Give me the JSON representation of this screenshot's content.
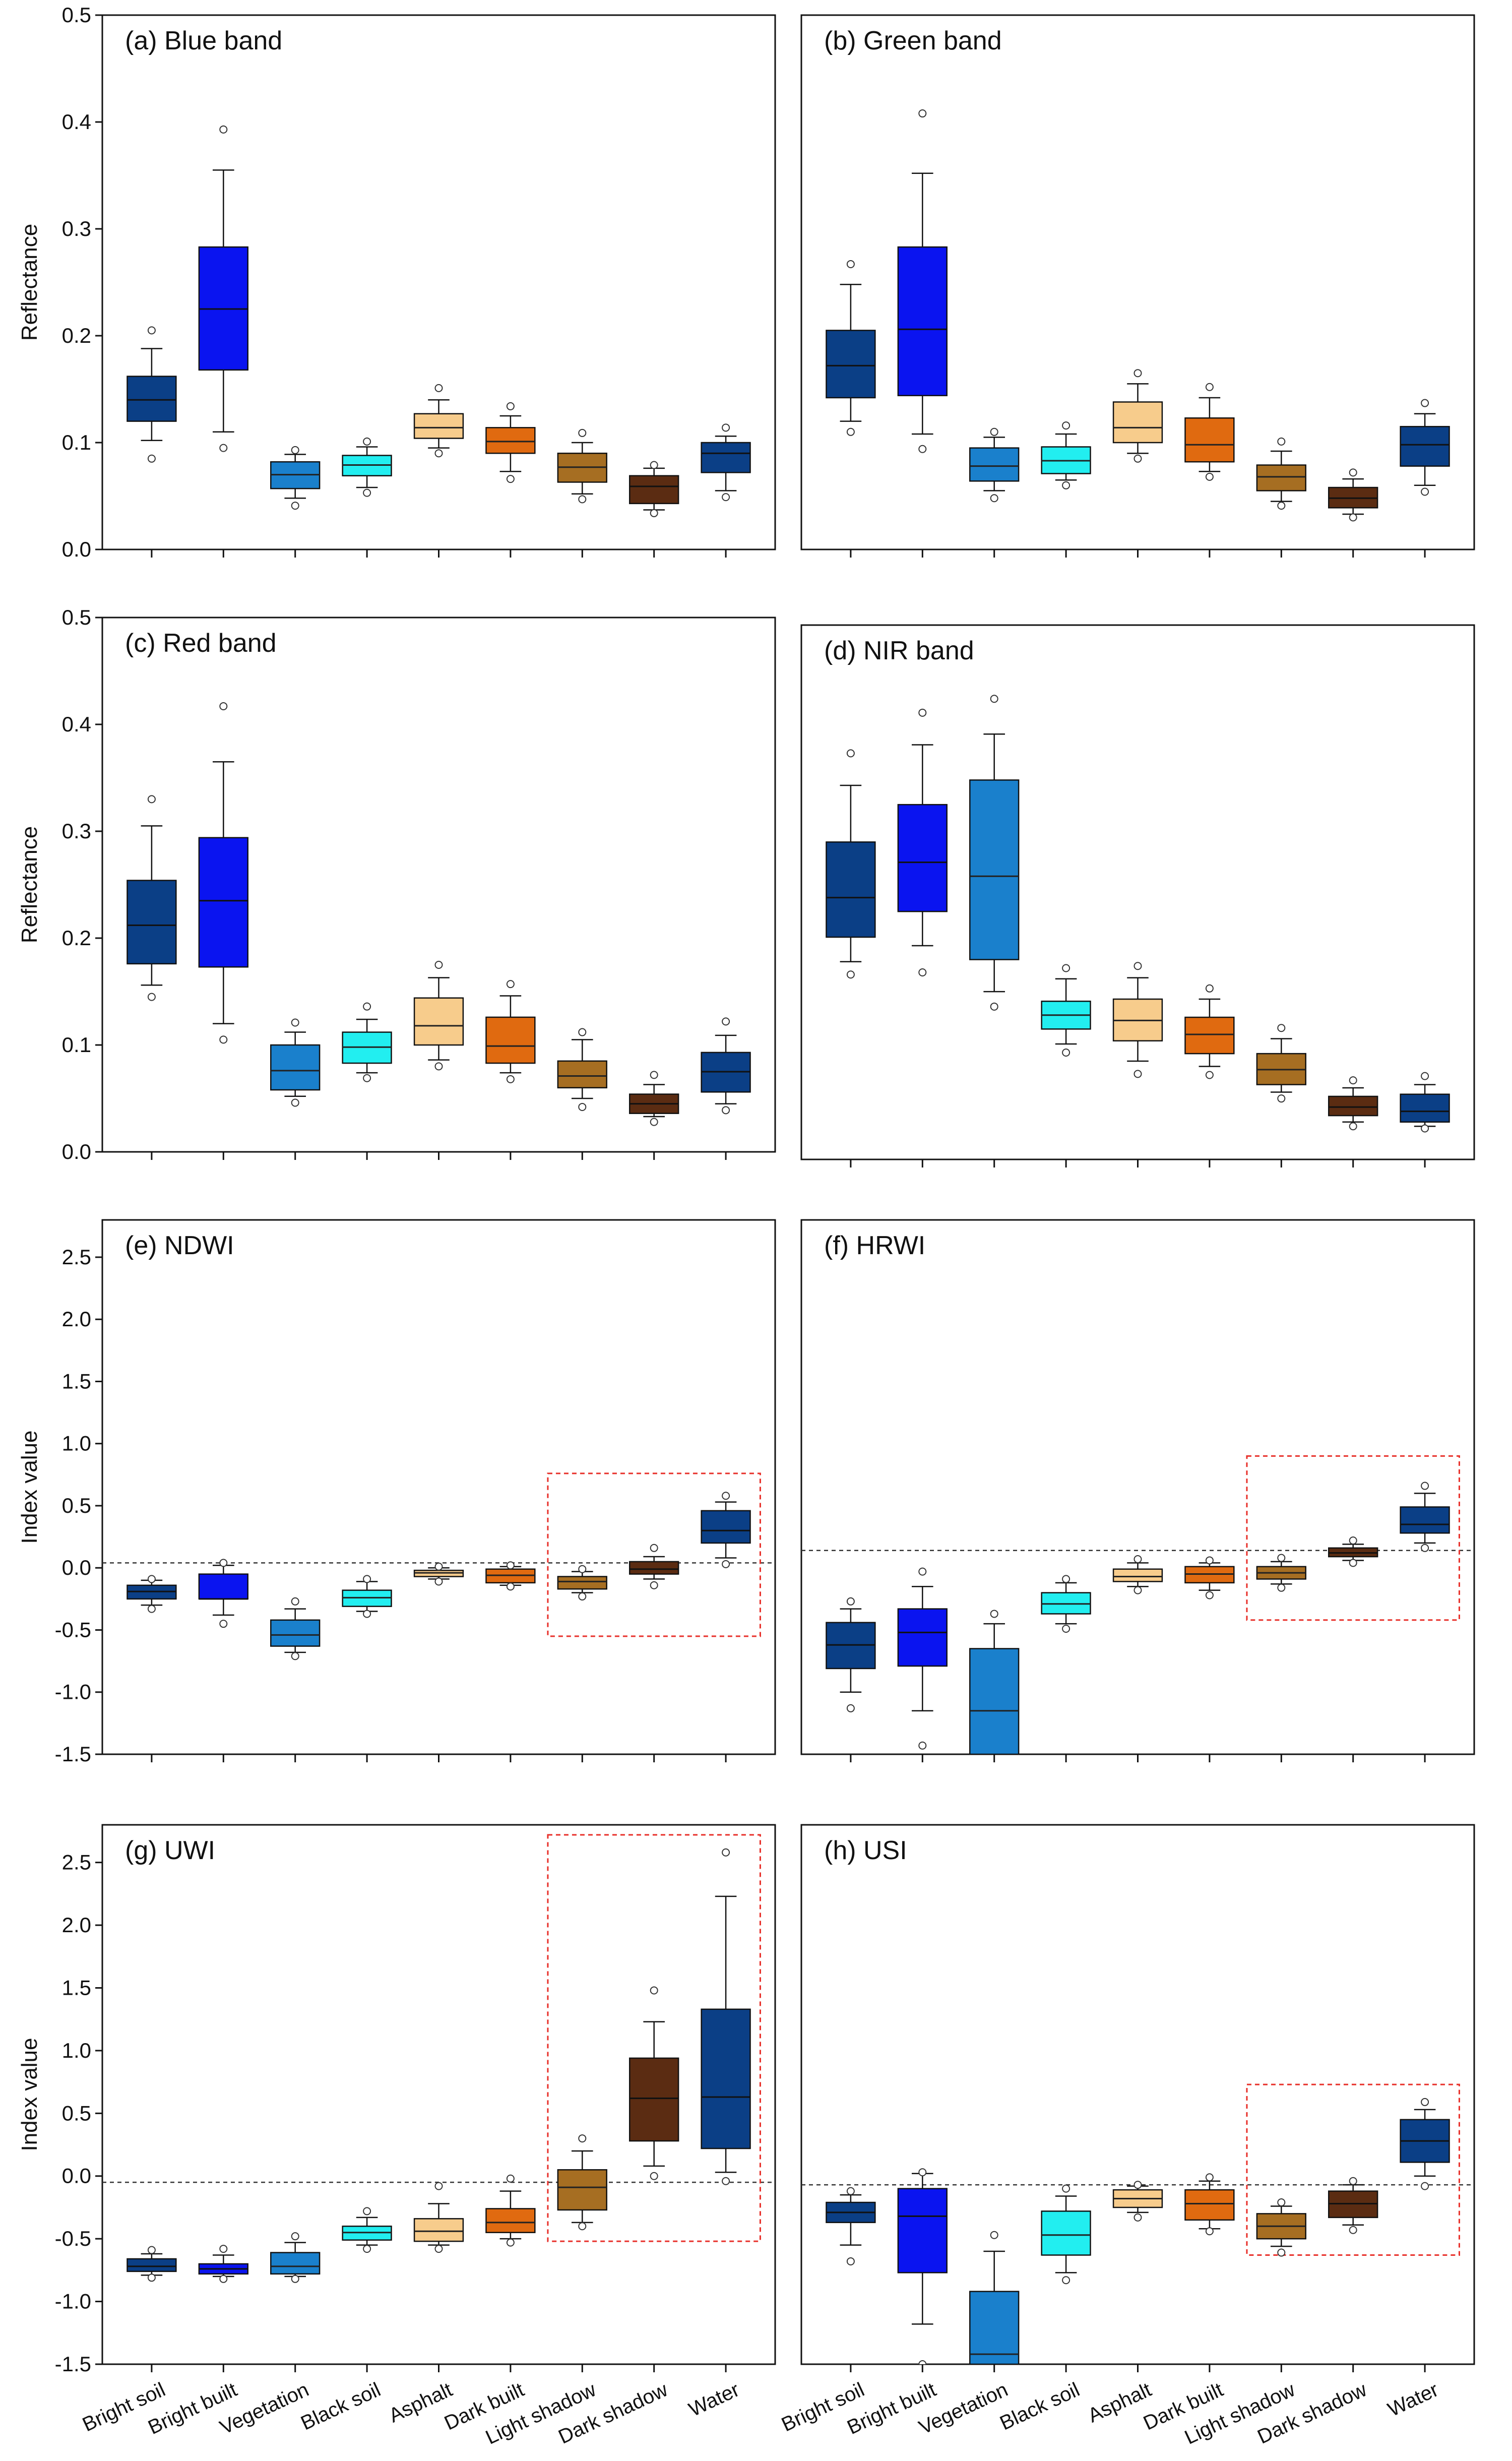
{
  "figure": {
    "categories": [
      "Bright soil",
      "Bright built",
      "Vegetation",
      "Black soil",
      "Asphalt",
      "Dark built",
      "Light shadow",
      "Dark shadow",
      "Water"
    ],
    "category_colors": [
      "#0b3f86",
      "#0a14f0",
      "#1a80cc",
      "#22eef0",
      "#f7cc8c",
      "#e06a10",
      "#a66e22",
      "#5b2c12",
      "#0b3f86"
    ]
  },
  "chart_data": [
    {
      "type": "box",
      "id": "a",
      "title": "(a) Blue band",
      "ylabel": "Reflectance",
      "ylim": [
        0,
        0.5
      ],
      "yticks": [
        0.0,
        0.1,
        0.2,
        0.3,
        0.4,
        0.5
      ],
      "tick_format": "1",
      "boxes": [
        {
          "q1": 0.12,
          "median": 0.14,
          "q3": 0.162,
          "wlo": 0.102,
          "whi": 0.188,
          "outliers": [
            0.085,
            0.205
          ]
        },
        {
          "q1": 0.168,
          "median": 0.225,
          "q3": 0.283,
          "wlo": 0.11,
          "whi": 0.355,
          "outliers": [
            0.095,
            0.393
          ]
        },
        {
          "q1": 0.057,
          "median": 0.07,
          "q3": 0.082,
          "wlo": 0.048,
          "whi": 0.089,
          "outliers": [
            0.041,
            0.093
          ]
        },
        {
          "q1": 0.069,
          "median": 0.079,
          "q3": 0.088,
          "wlo": 0.058,
          "whi": 0.096,
          "outliers": [
            0.053,
            0.101
          ]
        },
        {
          "q1": 0.104,
          "median": 0.114,
          "q3": 0.127,
          "wlo": 0.095,
          "whi": 0.14,
          "outliers": [
            0.09,
            0.151
          ]
        },
        {
          "q1": 0.09,
          "median": 0.101,
          "q3": 0.114,
          "wlo": 0.073,
          "whi": 0.125,
          "outliers": [
            0.066,
            0.134
          ]
        },
        {
          "q1": 0.063,
          "median": 0.077,
          "q3": 0.09,
          "wlo": 0.052,
          "whi": 0.1,
          "outliers": [
            0.047,
            0.109
          ]
        },
        {
          "q1": 0.043,
          "median": 0.059,
          "q3": 0.069,
          "wlo": 0.037,
          "whi": 0.076,
          "outliers": [
            0.034,
            0.079
          ]
        },
        {
          "q1": 0.072,
          "median": 0.09,
          "q3": 0.1,
          "wlo": 0.055,
          "whi": 0.106,
          "outliers": [
            0.049,
            0.114
          ]
        }
      ]
    },
    {
      "type": "box",
      "id": "b",
      "title": "(b) Green band",
      "ylim": [
        0,
        0.5
      ],
      "yticks": [],
      "tick_format": "1",
      "boxes": [
        {
          "q1": 0.142,
          "median": 0.172,
          "q3": 0.205,
          "wlo": 0.12,
          "whi": 0.248,
          "outliers": [
            0.11,
            0.267
          ]
        },
        {
          "q1": 0.144,
          "median": 0.206,
          "q3": 0.283,
          "wlo": 0.108,
          "whi": 0.352,
          "outliers": [
            0.094,
            0.408
          ]
        },
        {
          "q1": 0.064,
          "median": 0.078,
          "q3": 0.095,
          "wlo": 0.055,
          "whi": 0.105,
          "outliers": [
            0.048,
            0.11
          ]
        },
        {
          "q1": 0.071,
          "median": 0.083,
          "q3": 0.096,
          "wlo": 0.065,
          "whi": 0.108,
          "outliers": [
            0.06,
            0.116
          ]
        },
        {
          "q1": 0.1,
          "median": 0.114,
          "q3": 0.138,
          "wlo": 0.09,
          "whi": 0.155,
          "outliers": [
            0.085,
            0.165
          ]
        },
        {
          "q1": 0.082,
          "median": 0.098,
          "q3": 0.123,
          "wlo": 0.073,
          "whi": 0.142,
          "outliers": [
            0.068,
            0.152
          ]
        },
        {
          "q1": 0.055,
          "median": 0.068,
          "q3": 0.079,
          "wlo": 0.045,
          "whi": 0.092,
          "outliers": [
            0.041,
            0.101
          ]
        },
        {
          "q1": 0.039,
          "median": 0.048,
          "q3": 0.058,
          "wlo": 0.033,
          "whi": 0.066,
          "outliers": [
            0.03,
            0.072
          ]
        },
        {
          "q1": 0.078,
          "median": 0.098,
          "q3": 0.115,
          "wlo": 0.06,
          "whi": 0.127,
          "outliers": [
            0.054,
            0.137
          ]
        }
      ]
    },
    {
      "type": "box",
      "id": "c",
      "title": "(c) Red band",
      "ylabel": "Reflectance",
      "ylim": [
        0,
        0.5
      ],
      "yticks": [
        0.0,
        0.1,
        0.2,
        0.3,
        0.4,
        0.5
      ],
      "tick_format": "1",
      "boxes": [
        {
          "q1": 0.176,
          "median": 0.212,
          "q3": 0.254,
          "wlo": 0.156,
          "whi": 0.305,
          "outliers": [
            0.145,
            0.33
          ]
        },
        {
          "q1": 0.173,
          "median": 0.235,
          "q3": 0.294,
          "wlo": 0.12,
          "whi": 0.365,
          "outliers": [
            0.105,
            0.417
          ]
        },
        {
          "q1": 0.058,
          "median": 0.076,
          "q3": 0.1,
          "wlo": 0.052,
          "whi": 0.112,
          "outliers": [
            0.046,
            0.121
          ]
        },
        {
          "q1": 0.083,
          "median": 0.098,
          "q3": 0.112,
          "wlo": 0.074,
          "whi": 0.124,
          "outliers": [
            0.069,
            0.136
          ]
        },
        {
          "q1": 0.1,
          "median": 0.118,
          "q3": 0.144,
          "wlo": 0.086,
          "whi": 0.163,
          "outliers": [
            0.08,
            0.175
          ]
        },
        {
          "q1": 0.083,
          "median": 0.099,
          "q3": 0.126,
          "wlo": 0.074,
          "whi": 0.146,
          "outliers": [
            0.068,
            0.157
          ]
        },
        {
          "q1": 0.06,
          "median": 0.071,
          "q3": 0.085,
          "wlo": 0.05,
          "whi": 0.105,
          "outliers": [
            0.042,
            0.112
          ]
        },
        {
          "q1": 0.036,
          "median": 0.045,
          "q3": 0.054,
          "wlo": 0.033,
          "whi": 0.063,
          "outliers": [
            0.028,
            0.072
          ]
        },
        {
          "q1": 0.056,
          "median": 0.075,
          "q3": 0.093,
          "wlo": 0.045,
          "whi": 0.109,
          "outliers": [
            0.039,
            0.122
          ]
        }
      ]
    },
    {
      "type": "box",
      "id": "d",
      "title": "(d) NIR band",
      "ylim": [
        0,
        0.5
      ],
      "yticks": [],
      "tick_format": "1",
      "boxes": [
        {
          "q1": 0.208,
          "median": 0.245,
          "q3": 0.297,
          "wlo": 0.185,
          "whi": 0.35,
          "outliers": [
            0.173,
            0.38
          ]
        },
        {
          "q1": 0.232,
          "median": 0.278,
          "q3": 0.332,
          "wlo": 0.2,
          "whi": 0.388,
          "outliers": [
            0.175,
            0.418
          ]
        },
        {
          "q1": 0.187,
          "median": 0.265,
          "q3": 0.355,
          "wlo": 0.157,
          "whi": 0.398,
          "outliers": [
            0.143,
            0.431
          ]
        },
        {
          "q1": 0.122,
          "median": 0.135,
          "q3": 0.148,
          "wlo": 0.108,
          "whi": 0.169,
          "outliers": [
            0.1,
            0.179
          ]
        },
        {
          "q1": 0.111,
          "median": 0.13,
          "q3": 0.15,
          "wlo": 0.092,
          "whi": 0.17,
          "outliers": [
            0.08,
            0.181
          ]
        },
        {
          "q1": 0.099,
          "median": 0.117,
          "q3": 0.133,
          "wlo": 0.087,
          "whi": 0.15,
          "outliers": [
            0.079,
            0.16
          ]
        },
        {
          "q1": 0.07,
          "median": 0.084,
          "q3": 0.099,
          "wlo": 0.063,
          "whi": 0.113,
          "outliers": [
            0.057,
            0.123
          ]
        },
        {
          "q1": 0.041,
          "median": 0.049,
          "q3": 0.059,
          "wlo": 0.035,
          "whi": 0.067,
          "outliers": [
            0.031,
            0.074
          ]
        },
        {
          "q1": 0.035,
          "median": 0.045,
          "q3": 0.061,
          "wlo": 0.031,
          "whi": 0.07,
          "outliers": [
            0.029,
            0.078
          ]
        }
      ]
    },
    {
      "type": "box",
      "id": "e",
      "title": "(e) NDWI",
      "ylabel": "Index value",
      "ylim": [
        -1.5,
        2.8
      ],
      "yticks": [
        -1.5,
        -1.0,
        -0.5,
        0.0,
        0.5,
        1.0,
        1.5,
        2.0,
        2.5
      ],
      "tick_format": "1",
      "threshold": 0.04,
      "highlight": {
        "from": 6,
        "to": 8,
        "ylo": -0.55,
        "yhi": 0.76
      },
      "boxes": [
        {
          "q1": -0.25,
          "median": -0.19,
          "q3": -0.14,
          "wlo": -0.3,
          "whi": -0.1,
          "outliers": [
            -0.33,
            -0.09
          ]
        },
        {
          "q1": -0.25,
          "median": -0.25,
          "q3": -0.05,
          "wlo": -0.38,
          "whi": 0.02,
          "outliers": [
            -0.45,
            0.04
          ]
        },
        {
          "q1": -0.63,
          "median": -0.54,
          "q3": -0.42,
          "wlo": -0.68,
          "whi": -0.33,
          "outliers": [
            -0.71,
            -0.27
          ]
        },
        {
          "q1": -0.31,
          "median": -0.24,
          "q3": -0.18,
          "wlo": -0.35,
          "whi": -0.11,
          "outliers": [
            -0.37,
            -0.09
          ]
        },
        {
          "q1": -0.07,
          "median": -0.04,
          "q3": -0.02,
          "wlo": -0.09,
          "whi": 0.0,
          "outliers": [
            -0.11,
            0.01
          ]
        },
        {
          "q1": -0.12,
          "median": -0.06,
          "q3": -0.01,
          "wlo": -0.14,
          "whi": 0.01,
          "outliers": [
            -0.15,
            0.02
          ]
        },
        {
          "q1": -0.17,
          "median": -0.11,
          "q3": -0.07,
          "wlo": -0.2,
          "whi": -0.03,
          "outliers": [
            -0.23,
            -0.01
          ]
        },
        {
          "q1": -0.05,
          "median": -0.01,
          "q3": 0.05,
          "wlo": -0.09,
          "whi": 0.09,
          "outliers": [
            -0.14,
            0.16
          ]
        },
        {
          "q1": 0.2,
          "median": 0.3,
          "q3": 0.46,
          "wlo": 0.08,
          "whi": 0.53,
          "outliers": [
            0.03,
            0.58
          ]
        }
      ]
    },
    {
      "type": "box",
      "id": "f",
      "title": "(f) HRWI",
      "ylim": [
        -1.5,
        2.8
      ],
      "yticks": [],
      "tick_format": "1",
      "threshold": 0.14,
      "highlight": {
        "from": 6,
        "to": 8,
        "ylo": -0.42,
        "yhi": 0.9
      },
      "boxes": [
        {
          "q1": -0.81,
          "median": -0.62,
          "q3": -0.44,
          "wlo": -1.0,
          "whi": -0.33,
          "outliers": [
            -1.13,
            -0.27
          ]
        },
        {
          "q1": -0.79,
          "median": -0.52,
          "q3": -0.33,
          "wlo": -1.15,
          "whi": -0.15,
          "outliers": [
            -1.43,
            -0.03
          ]
        },
        {
          "q1": -1.5,
          "median": -1.15,
          "q3": -0.65,
          "wlo": -1.5,
          "whi": -0.45,
          "outliers": [
            -0.37
          ]
        },
        {
          "q1": -0.37,
          "median": -0.29,
          "q3": -0.2,
          "wlo": -0.45,
          "whi": -0.12,
          "outliers": [
            -0.49,
            -0.09
          ]
        },
        {
          "q1": -0.11,
          "median": -0.07,
          "q3": -0.01,
          "wlo": -0.15,
          "whi": 0.04,
          "outliers": [
            -0.18,
            0.07
          ]
        },
        {
          "q1": -0.12,
          "median": -0.05,
          "q3": 0.01,
          "wlo": -0.18,
          "whi": 0.04,
          "outliers": [
            -0.22,
            0.06
          ]
        },
        {
          "q1": -0.09,
          "median": -0.04,
          "q3": 0.01,
          "wlo": -0.13,
          "whi": 0.05,
          "outliers": [
            -0.16,
            0.08
          ]
        },
        {
          "q1": 0.09,
          "median": 0.12,
          "q3": 0.16,
          "wlo": 0.06,
          "whi": 0.19,
          "outliers": [
            0.04,
            0.22
          ]
        },
        {
          "q1": 0.28,
          "median": 0.35,
          "q3": 0.49,
          "wlo": 0.2,
          "whi": 0.6,
          "outliers": [
            0.16,
            0.66
          ]
        }
      ]
    },
    {
      "type": "box",
      "id": "g",
      "title": "(g) UWI",
      "ylabel": "Index value",
      "ylim": [
        -1.5,
        2.8
      ],
      "yticks": [
        -1.5,
        -1.0,
        -0.5,
        0.0,
        0.5,
        1.0,
        1.5,
        2.0,
        2.5
      ],
      "tick_format": "1",
      "threshold": -0.05,
      "highlight": {
        "from": 6,
        "to": 8,
        "ylo": -0.52,
        "yhi": 2.72
      },
      "boxes": [
        {
          "q1": -0.76,
          "median": -0.72,
          "q3": -0.66,
          "wlo": -0.79,
          "whi": -0.62,
          "outliers": [
            -0.81,
            -0.59
          ]
        },
        {
          "q1": -0.78,
          "median": -0.74,
          "q3": -0.7,
          "wlo": -0.8,
          "whi": -0.63,
          "outliers": [
            -0.82,
            -0.58
          ]
        },
        {
          "q1": -0.78,
          "median": -0.72,
          "q3": -0.61,
          "wlo": -0.8,
          "whi": -0.53,
          "outliers": [
            -0.82,
            -0.48
          ]
        },
        {
          "q1": -0.51,
          "median": -0.45,
          "q3": -0.4,
          "wlo": -0.55,
          "whi": -0.33,
          "outliers": [
            -0.58,
            -0.28
          ]
        },
        {
          "q1": -0.52,
          "median": -0.44,
          "q3": -0.34,
          "wlo": -0.55,
          "whi": -0.22,
          "outliers": [
            -0.58,
            -0.08
          ]
        },
        {
          "q1": -0.45,
          "median": -0.37,
          "q3": -0.26,
          "wlo": -0.5,
          "whi": -0.12,
          "outliers": [
            -0.53,
            -0.02
          ]
        },
        {
          "q1": -0.27,
          "median": -0.09,
          "q3": 0.05,
          "wlo": -0.37,
          "whi": 0.2,
          "outliers": [
            -0.4,
            0.3
          ]
        },
        {
          "q1": 0.28,
          "median": 0.62,
          "q3": 0.94,
          "wlo": 0.08,
          "whi": 1.23,
          "outliers": [
            0.0,
            1.48
          ]
        },
        {
          "q1": 0.22,
          "median": 0.63,
          "q3": 1.33,
          "wlo": 0.03,
          "whi": 2.23,
          "outliers": [
            -0.04,
            2.58
          ]
        }
      ]
    },
    {
      "type": "box",
      "id": "h",
      "title": "(h) USI",
      "ylim": [
        -1.5,
        2.8
      ],
      "yticks": [],
      "tick_format": "1",
      "threshold": -0.07,
      "highlight": {
        "from": 6,
        "to": 8,
        "ylo": -0.63,
        "yhi": 0.73
      },
      "boxes": [
        {
          "q1": -0.37,
          "median": -0.29,
          "q3": -0.21,
          "wlo": -0.55,
          "whi": -0.15,
          "outliers": [
            -0.68,
            -0.12
          ]
        },
        {
          "q1": -0.77,
          "median": -0.32,
          "q3": -0.1,
          "wlo": -1.18,
          "whi": 0.02,
          "outliers": [
            -1.5,
            0.03
          ]
        },
        {
          "q1": -1.5,
          "median": -1.42,
          "q3": -0.92,
          "wlo": -1.5,
          "whi": -0.6,
          "outliers": [
            -0.47
          ]
        },
        {
          "q1": -0.63,
          "median": -0.47,
          "q3": -0.28,
          "wlo": -0.77,
          "whi": -0.16,
          "outliers": [
            -0.83,
            -0.1
          ]
        },
        {
          "q1": -0.25,
          "median": -0.18,
          "q3": -0.11,
          "wlo": -0.29,
          "whi": -0.08,
          "outliers": [
            -0.33,
            -0.07
          ]
        },
        {
          "q1": -0.35,
          "median": -0.22,
          "q3": -0.11,
          "wlo": -0.42,
          "whi": -0.04,
          "outliers": [
            -0.44,
            -0.01
          ]
        },
        {
          "q1": -0.5,
          "median": -0.4,
          "q3": -0.3,
          "wlo": -0.56,
          "whi": -0.24,
          "outliers": [
            -0.61,
            -0.21
          ]
        },
        {
          "q1": -0.33,
          "median": -0.22,
          "q3": -0.12,
          "wlo": -0.39,
          "whi": -0.07,
          "outliers": [
            -0.43,
            -0.04
          ]
        },
        {
          "q1": 0.11,
          "median": 0.28,
          "q3": 0.45,
          "wlo": 0.0,
          "whi": 0.53,
          "outliers": [
            -0.08,
            0.59
          ]
        }
      ]
    }
  ]
}
